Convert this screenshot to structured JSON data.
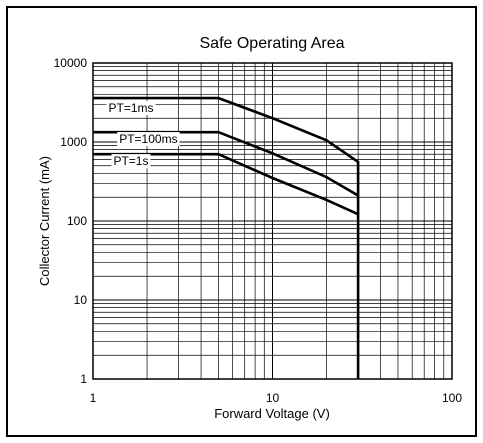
{
  "chart_data": {
    "type": "line",
    "title": "Safe Operating Area",
    "xlabel": "Forward Voltage (V)",
    "ylabel": "Collector Current (mA)",
    "x_scale": "log",
    "y_scale": "log",
    "xlim": [
      1,
      100
    ],
    "ylim": [
      1,
      10000
    ],
    "grid": true,
    "x_ticks": [
      {
        "value": 1,
        "label": "1"
      },
      {
        "value": 10,
        "label": "10"
      },
      {
        "value": 100,
        "label": "100"
      }
    ],
    "y_ticks": [
      {
        "value": 1,
        "label": "1"
      },
      {
        "value": 10,
        "label": "10"
      },
      {
        "value": 100,
        "label": "100"
      },
      {
        "value": 1000,
        "label": "1000"
      },
      {
        "value": 10000,
        "label": "10000"
      }
    ],
    "series": [
      {
        "name": "PT=1ms",
        "points": [
          [
            1,
            3600
          ],
          [
            5,
            3600
          ],
          [
            10,
            2000
          ],
          [
            20,
            1050
          ],
          [
            30,
            560
          ],
          [
            30,
            1
          ]
        ]
      },
      {
        "name": "PT=100ms",
        "points": [
          [
            1,
            1330
          ],
          [
            5,
            1330
          ],
          [
            10,
            720
          ],
          [
            20,
            360
          ],
          [
            30,
            210
          ]
        ]
      },
      {
        "name": "PT=1s",
        "points": [
          [
            1,
            700
          ],
          [
            5,
            700
          ],
          [
            10,
            350
          ],
          [
            20,
            185
          ],
          [
            30,
            122
          ]
        ]
      }
    ]
  }
}
